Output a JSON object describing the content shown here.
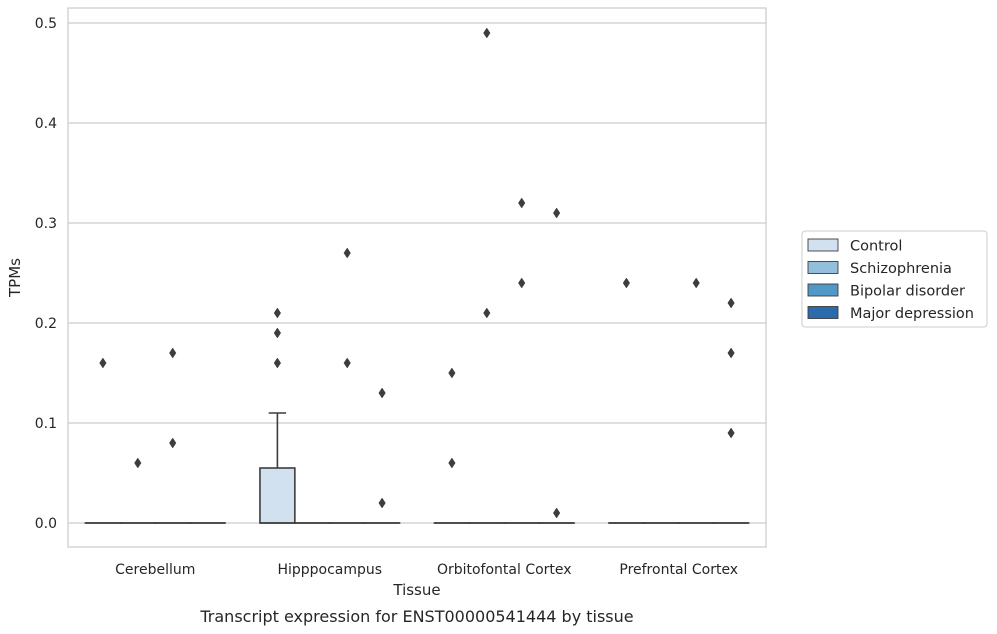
{
  "chart_data": {
    "type": "box",
    "caption": "Transcript expression for ENST00000541444 by tissue",
    "xlabel": "Tissue",
    "ylabel": "TPMs",
    "ylim": [
      -0.024,
      0.515
    ],
    "yticks": [
      "0.0",
      "0.1",
      "0.2",
      "0.3",
      "0.4",
      "0.5"
    ],
    "categories": [
      "Cerebellum",
      "Hipppocampus",
      "Orbitofontal Cortex",
      "Prefrontal Cortex"
    ],
    "grid": "horizontal",
    "legend_position": "right",
    "series": [
      {
        "name": "Control",
        "color": "#d1e1f0",
        "boxes": [
          {
            "category": "Cerebellum",
            "q1": 0,
            "median": 0,
            "q3": 0,
            "whisker_low": 0,
            "whisker_high": 0,
            "outliers": [
              0.16
            ]
          },
          {
            "category": "Hipppocampus",
            "q1": 0,
            "median": 0,
            "q3": 0.055,
            "whisker_low": 0,
            "whisker_high": 0.11,
            "outliers": [
              0.16,
              0.19,
              0.21
            ]
          },
          {
            "category": "Orbitofontal Cortex",
            "q1": 0,
            "median": 0,
            "q3": 0,
            "whisker_low": 0,
            "whisker_high": 0,
            "outliers": [
              0.06,
              0.15
            ]
          },
          {
            "category": "Prefrontal Cortex",
            "q1": 0,
            "median": 0,
            "q3": 0,
            "whisker_low": 0,
            "whisker_high": 0,
            "outliers": [
              0.24
            ]
          }
        ]
      },
      {
        "name": "Schizophrenia",
        "color": "#93bfdc",
        "boxes": [
          {
            "category": "Cerebellum",
            "q1": 0,
            "median": 0,
            "q3": 0,
            "whisker_low": 0,
            "whisker_high": 0,
            "outliers": [
              0.06
            ]
          },
          {
            "category": "Hipppocampus",
            "q1": 0,
            "median": 0,
            "q3": 0,
            "whisker_low": 0,
            "whisker_high": 0,
            "outliers": []
          },
          {
            "category": "Orbitofontal Cortex",
            "q1": 0,
            "median": 0,
            "q3": 0,
            "whisker_low": 0,
            "whisker_high": 0,
            "outliers": [
              0.21,
              0.49
            ]
          },
          {
            "category": "Prefrontal Cortex",
            "q1": 0,
            "median": 0,
            "q3": 0,
            "whisker_low": 0,
            "whisker_high": 0,
            "outliers": []
          }
        ]
      },
      {
        "name": "Bipolar disorder",
        "color": "#5198c6",
        "boxes": [
          {
            "category": "Cerebellum",
            "q1": 0,
            "median": 0,
            "q3": 0,
            "whisker_low": 0,
            "whisker_high": 0,
            "outliers": [
              0.08,
              0.17
            ]
          },
          {
            "category": "Hipppocampus",
            "q1": 0,
            "median": 0,
            "q3": 0,
            "whisker_low": 0,
            "whisker_high": 0,
            "outliers": [
              0.16,
              0.27
            ]
          },
          {
            "category": "Orbitofontal Cortex",
            "q1": 0,
            "median": 0,
            "q3": 0,
            "whisker_low": 0,
            "whisker_high": 0,
            "outliers": [
              0.24,
              0.32
            ]
          },
          {
            "category": "Prefrontal Cortex",
            "q1": 0,
            "median": 0,
            "q3": 0,
            "whisker_low": 0,
            "whisker_high": 0,
            "outliers": [
              0.24
            ]
          }
        ]
      },
      {
        "name": "Major depression",
        "color": "#2a6aad",
        "boxes": [
          {
            "category": "Cerebellum",
            "q1": 0,
            "median": 0,
            "q3": 0,
            "whisker_low": 0,
            "whisker_high": 0,
            "outliers": []
          },
          {
            "category": "Hipppocampus",
            "q1": 0,
            "median": 0,
            "q3": 0,
            "whisker_low": 0,
            "whisker_high": 0,
            "outliers": [
              0.02,
              0.13
            ]
          },
          {
            "category": "Orbitofontal Cortex",
            "q1": 0,
            "median": 0,
            "q3": 0,
            "whisker_low": 0,
            "whisker_high": 0,
            "outliers": [
              0.01,
              0.31
            ]
          },
          {
            "category": "Prefrontal Cortex",
            "q1": 0,
            "median": 0,
            "q3": 0,
            "whisker_low": 0,
            "whisker_high": 0,
            "outliers": [
              0.09,
              0.17,
              0.22
            ]
          }
        ]
      }
    ]
  }
}
